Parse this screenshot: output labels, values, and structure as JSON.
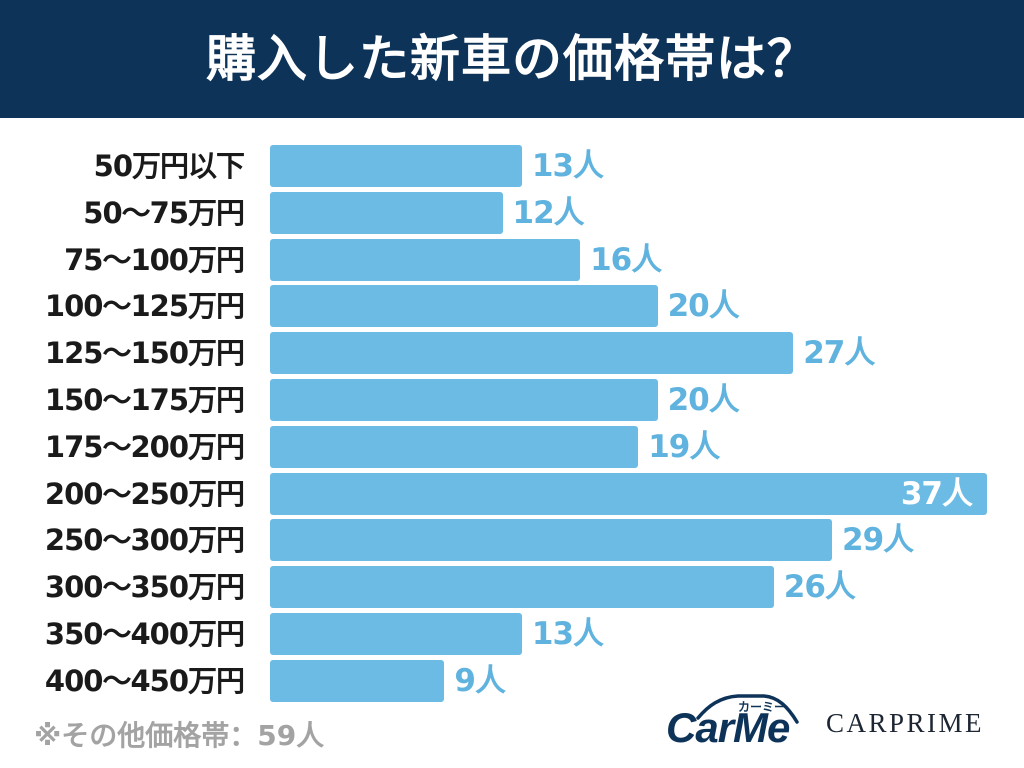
{
  "chart_data": {
    "type": "bar",
    "orientation": "horizontal",
    "title": "購入した新車の価格帯は？",
    "categories": [
      "50万円以下",
      "50〜75万円",
      "75〜100万円",
      "100〜125万円",
      "125〜150万円",
      "150〜175万円",
      "175〜200万円",
      "200〜250万円",
      "250〜300万円",
      "300〜350万円",
      "350〜400万円",
      "400〜450万円"
    ],
    "values": [
      13,
      12,
      16,
      20,
      27,
      20,
      19,
      37,
      29,
      26,
      13,
      9
    ],
    "data_labels": [
      "13人",
      "12人",
      "16人",
      "20人",
      "27人",
      "20人",
      "19人",
      "37人",
      "29人",
      "26人",
      "13人",
      "9人"
    ],
    "xlabel": "",
    "ylabel": "",
    "grid": false
  },
  "footnote": "※その他価格帯：59人",
  "logos": {
    "carme": "CarMe",
    "carme_kana": "カーミー",
    "carprime": "CARPRIME"
  },
  "colors": {
    "header_bg": "#0e3358",
    "title_text": "#ffffff",
    "bar": "#6bbbe4",
    "value_label": "#5fb3de",
    "value_label_inside": "#ffffff",
    "category_label": "#1a1a1a",
    "footnote": "#a3a3a3",
    "carme_logo": "#0e3358",
    "carprime_logo": "#1d2633"
  }
}
